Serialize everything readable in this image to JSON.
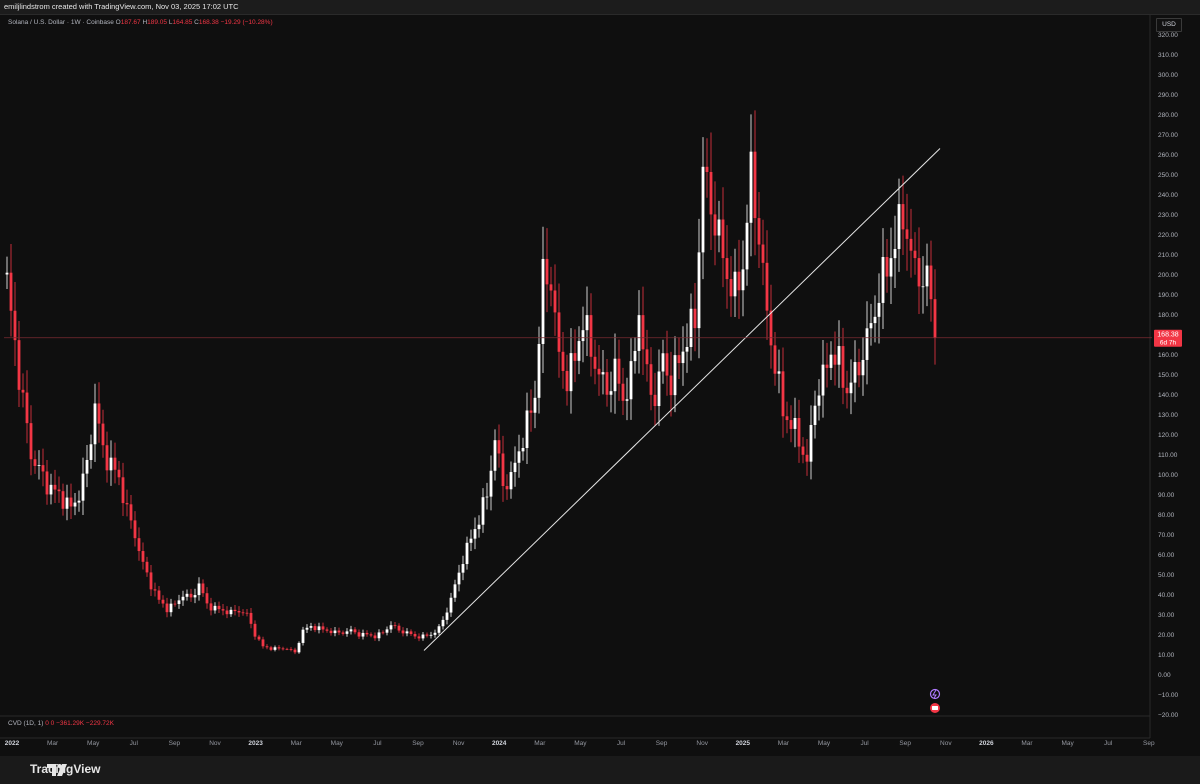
{
  "header": {
    "caption": "emiljlindstrom created with TradingView.com, Nov 03, 2025 17:02 UTC"
  },
  "legend": {
    "symbol": "Solana / U.S. Dollar · 1W · Coinbase",
    "o_label": "O",
    "o_value": "187.67",
    "h_label": "H",
    "h_value": "189.05",
    "l_label": "L",
    "l_value": "164.85",
    "c_label": "C",
    "c_value": "168.38",
    "change": "−19.29 (−10.28%)"
  },
  "currency": "USD",
  "last_price": {
    "value": "168.38",
    "countdown": "6d 7h"
  },
  "cvd": {
    "label": "CVD (1D, 1)",
    "v1": "0",
    "v2": "0",
    "v3": "−361.29K",
    "v4": "−229.72K"
  },
  "footer": {
    "brand": "TradingView"
  },
  "colors": {
    "background": "#0f0f0f",
    "up": "#ffffff",
    "down": "#f23645",
    "last_price_line": "#7a2a30"
  },
  "chart_data": {
    "type": "candlestick",
    "interval": "1W",
    "y_ticks": [
      320,
      310,
      300,
      290,
      280,
      270,
      260,
      250,
      240,
      230,
      220,
      210,
      200,
      190,
      180,
      170,
      160,
      150,
      140,
      130,
      120,
      110,
      100,
      90,
      80,
      70,
      60,
      50,
      40,
      30,
      20,
      10,
      0,
      -10,
      -20
    ],
    "x_ticks": [
      "2022",
      "Mar",
      "May",
      "Jul",
      "Sep",
      "Nov",
      "2023",
      "Mar",
      "May",
      "Jul",
      "Sep",
      "Nov",
      "2024",
      "Mar",
      "May",
      "Jul",
      "Sep",
      "Nov",
      "2025",
      "Mar",
      "May",
      "Jul",
      "Sep",
      "Nov",
      "2026",
      "Mar",
      "May",
      "Jul",
      "Sep"
    ],
    "anchors": [
      [
        0,
        196
      ],
      [
        1,
        180
      ],
      [
        3,
        150
      ],
      [
        6,
        110
      ],
      [
        10,
        95
      ],
      [
        14,
        88
      ],
      [
        16,
        83
      ],
      [
        18,
        90
      ],
      [
        20,
        105
      ],
      [
        22,
        135
      ],
      [
        24,
        112
      ],
      [
        26,
        105
      ],
      [
        28,
        98
      ],
      [
        30,
        82
      ],
      [
        32,
        70
      ],
      [
        34,
        55
      ],
      [
        36,
        45
      ],
      [
        38,
        37
      ],
      [
        40,
        33
      ],
      [
        42,
        35
      ],
      [
        44,
        40
      ],
      [
        46,
        38
      ],
      [
        48,
        45
      ],
      [
        50,
        35
      ],
      [
        52,
        33
      ],
      [
        54,
        32
      ],
      [
        56,
        31
      ],
      [
        58,
        32
      ],
      [
        60,
        30
      ],
      [
        62,
        20
      ],
      [
        64,
        14
      ],
      [
        66,
        13
      ],
      [
        68,
        13
      ],
      [
        70,
        13
      ],
      [
        72,
        11
      ],
      [
        74,
        22
      ],
      [
        76,
        24
      ],
      [
        78,
        23
      ],
      [
        80,
        22
      ],
      [
        82,
        21
      ],
      [
        84,
        21
      ],
      [
        86,
        22
      ],
      [
        88,
        20
      ],
      [
        90,
        20
      ],
      [
        92,
        19
      ],
      [
        94,
        21
      ],
      [
        96,
        25
      ],
      [
        98,
        22
      ],
      [
        100,
        21
      ],
      [
        102,
        19
      ],
      [
        104,
        19
      ],
      [
        106,
        20
      ],
      [
        108,
        23
      ],
      [
        110,
        32
      ],
      [
        112,
        44
      ],
      [
        114,
        58
      ],
      [
        116,
        68
      ],
      [
        118,
        78
      ],
      [
        120,
        90
      ],
      [
        122,
        118
      ],
      [
        124,
        95
      ],
      [
        126,
        98
      ],
      [
        128,
        112
      ],
      [
        130,
        125
      ],
      [
        132,
        140
      ],
      [
        134,
        198
      ],
      [
        136,
        198
      ],
      [
        138,
        158
      ],
      [
        140,
        148
      ],
      [
        142,
        158
      ],
      [
        144,
        178
      ],
      [
        146,
        162
      ],
      [
        148,
        150
      ],
      [
        150,
        142
      ],
      [
        152,
        152
      ],
      [
        154,
        138
      ],
      [
        156,
        148
      ],
      [
        158,
        182
      ],
      [
        160,
        148
      ],
      [
        162,
        138
      ],
      [
        164,
        158
      ],
      [
        166,
        145
      ],
      [
        168,
        158
      ],
      [
        170,
        168
      ],
      [
        172,
        178
      ],
      [
        174,
        252
      ],
      [
        176,
        235
      ],
      [
        178,
        218
      ],
      [
        180,
        200
      ],
      [
        182,
        190
      ],
      [
        184,
        205
      ],
      [
        186,
        250
      ],
      [
        188,
        220
      ],
      [
        190,
        180
      ],
      [
        192,
        155
      ],
      [
        194,
        132
      ],
      [
        196,
        125
      ],
      [
        198,
        118
      ],
      [
        200,
        105
      ],
      [
        202,
        138
      ],
      [
        204,
        148
      ],
      [
        206,
        162
      ],
      [
        208,
        155
      ],
      [
        210,
        142
      ],
      [
        212,
        150
      ],
      [
        214,
        160
      ],
      [
        216,
        175
      ],
      [
        218,
        190
      ],
      [
        220,
        205
      ],
      [
        222,
        215
      ],
      [
        224,
        232
      ],
      [
        226,
        208
      ],
      [
        228,
        200
      ],
      [
        230,
        195
      ],
      [
        232,
        168
      ]
    ],
    "trendline": {
      "from": [
        "2023 Oct",
        12
      ],
      "to": [
        "2025 Nov",
        263
      ]
    },
    "last_close": 168.38,
    "ylim": [
      -20,
      325
    ]
  }
}
